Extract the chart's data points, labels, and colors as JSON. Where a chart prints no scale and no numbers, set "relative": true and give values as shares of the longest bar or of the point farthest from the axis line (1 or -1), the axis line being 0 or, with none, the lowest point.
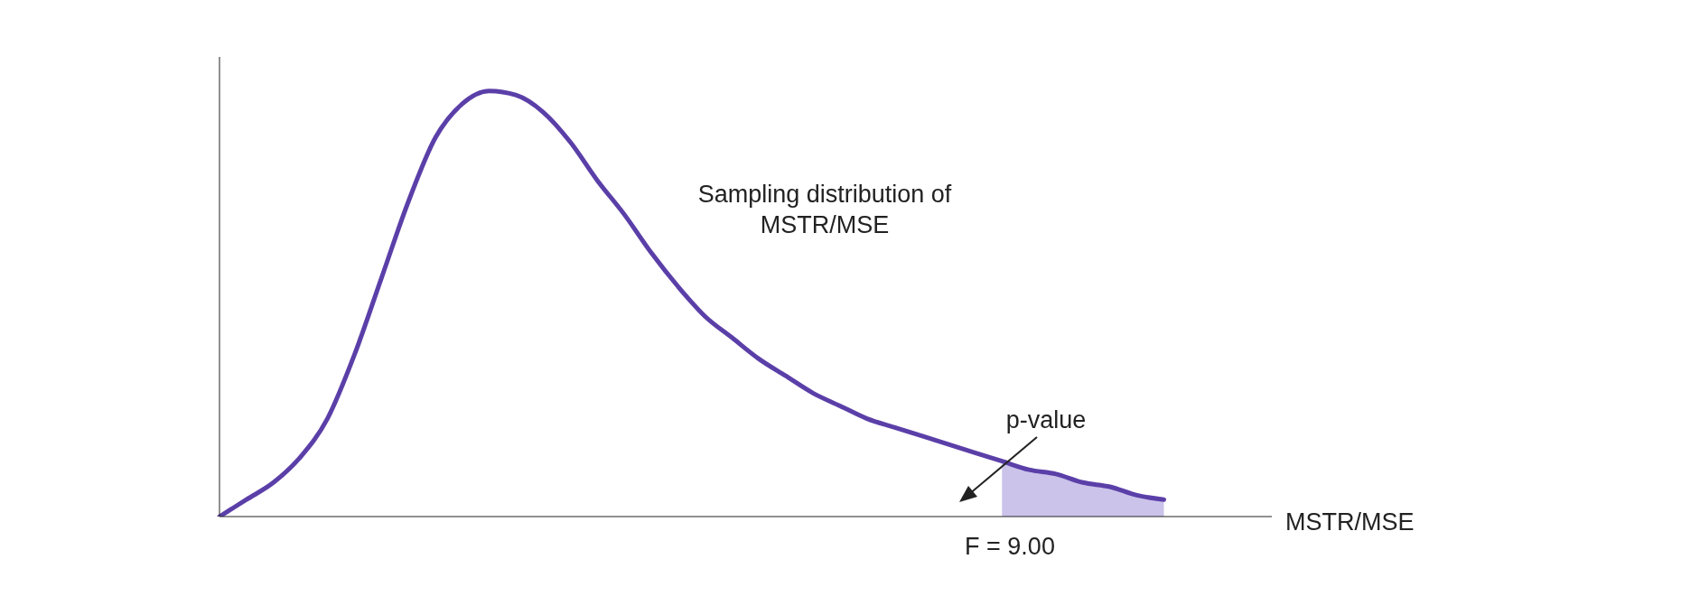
{
  "chart_data": {
    "type": "line",
    "relative": true,
    "tick_labels": false,
    "xlabel": "MSTR/MSE",
    "categories": [
      null,
      null,
      null,
      null,
      null,
      null,
      null,
      null,
      null,
      null,
      null,
      null,
      null,
      null,
      null,
      null,
      null,
      null,
      null,
      null,
      null,
      null,
      null,
      null,
      null,
      null,
      null,
      null,
      null,
      null,
      null,
      null,
      null,
      null,
      null,
      null,
      null,
      null,
      null,
      null
    ],
    "series": [
      {
        "type": "area",
        "color": "#cbc3ea",
        "values": [
          null,
          null,
          null,
          null,
          null,
          null,
          null,
          null,
          null,
          null,
          null,
          null,
          null,
          null,
          null,
          null,
          null,
          null,
          null,
          null,
          null,
          null,
          null,
          null,
          null,
          null,
          null,
          null,
          null,
          0.13,
          0.11,
          0.1,
          0.08,
          0.07,
          0.05,
          0.04,
          null,
          null,
          null,
          null
        ]
      },
      {
        "color": "#5b3fa8",
        "values": [
          0,
          0.04,
          0.08,
          0.14,
          0.23,
          0.38,
          0.56,
          0.74,
          0.89,
          0.97,
          1,
          0.99,
          0.95,
          0.88,
          0.79,
          0.71,
          0.62,
          0.54,
          0.47,
          0.42,
          0.37,
          0.33,
          0.29,
          0.26,
          0.23,
          0.21,
          0.19,
          0.17,
          0.15,
          0.13,
          0.11,
          0.1,
          0.08,
          0.07,
          0.05,
          0.04,
          null,
          null,
          null,
          null
        ]
      }
    ],
    "annotations": [
      "Sampling distribution of MSTR/MSE",
      "p-value",
      "F = 9.00"
    ]
  }
}
